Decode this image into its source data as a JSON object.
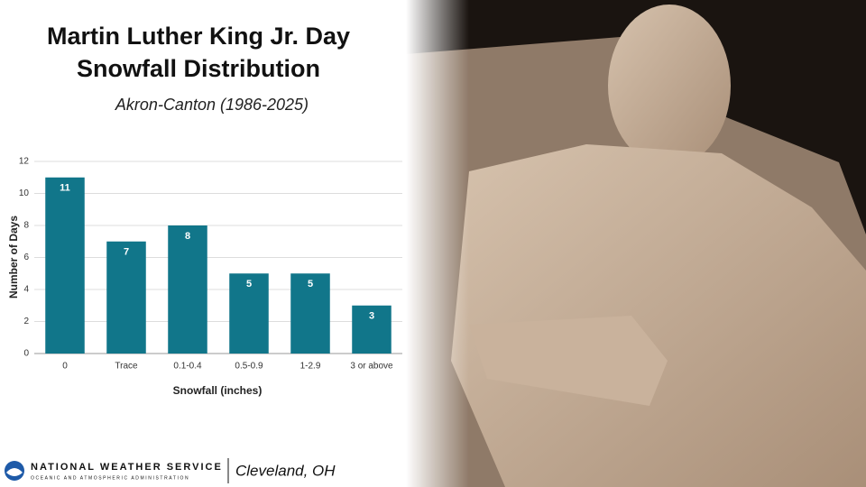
{
  "chart_data": {
    "type": "bar",
    "title": "Martin Luther King Jr. Day Snowfall Distribution",
    "subtitle": "Akron-Canton (1986-2025)",
    "x_label": "Snowfall (inches)",
    "y_label": "Number of Days",
    "categories": [
      "0",
      "Trace",
      "0.1-0.4",
      "0.5-0.9",
      "1-2.9",
      "3 or above"
    ],
    "values": [
      11,
      7,
      8,
      5,
      5,
      3
    ],
    "color": "#11768a",
    "ylim": [
      0,
      12
    ],
    "yticks": [
      0,
      2,
      4,
      6,
      8,
      10,
      12
    ],
    "grid": true
  },
  "footer": {
    "agency": "NATIONAL WEATHER SERVICE",
    "agency_sub": "OCEANIC AND ATMOSPHERIC ADMINISTRATION",
    "office": "Cleveland, OH"
  }
}
